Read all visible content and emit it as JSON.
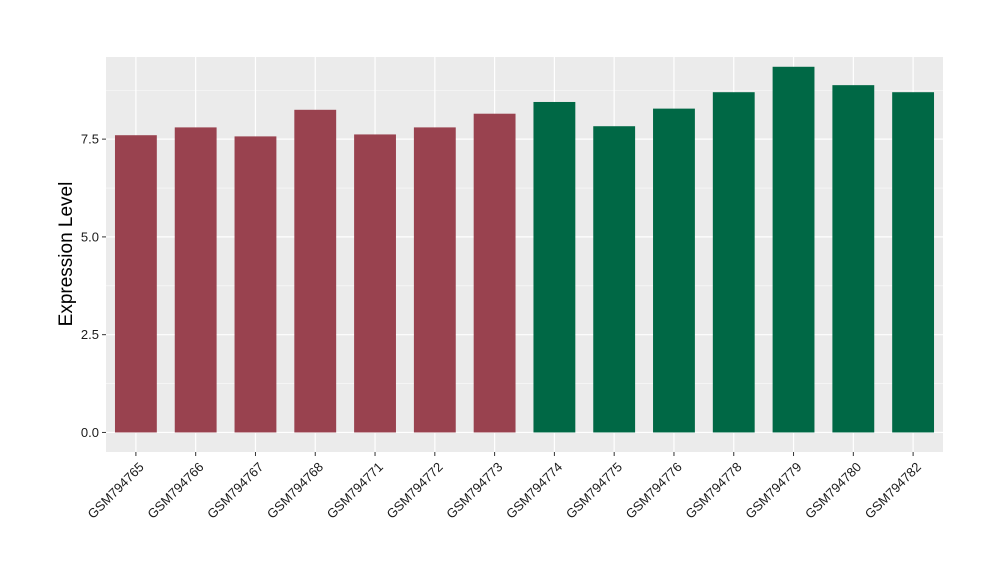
{
  "chart_data": {
    "type": "bar",
    "title": "",
    "xlabel": "",
    "ylabel": "Expression Level",
    "ylim": [
      -0.5,
      9.6
    ],
    "yticks": [
      0.0,
      2.5,
      5.0,
      7.5
    ],
    "ytick_labels": [
      "0.0",
      "2.5",
      "5.0",
      "7.5"
    ],
    "grid": true,
    "legend": "none",
    "categories": [
      "GSM794765",
      "GSM794766",
      "GSM794767",
      "GSM794768",
      "GSM794771",
      "GSM794772",
      "GSM794773",
      "GSM794774",
      "GSM794775",
      "GSM794776",
      "GSM794778",
      "GSM794779",
      "GSM794780",
      "GSM794782"
    ],
    "values": [
      7.6,
      7.8,
      7.57,
      8.25,
      7.62,
      7.8,
      8.15,
      8.45,
      7.83,
      8.28,
      8.7,
      9.35,
      8.88,
      8.7
    ],
    "group": [
      0,
      0,
      0,
      0,
      0,
      0,
      0,
      1,
      1,
      1,
      1,
      1,
      1,
      1
    ],
    "colors": {
      "group_0": "#99424f",
      "group_1": "#006845",
      "panel_background": "#ebebeb",
      "gridline": "#ffffff"
    }
  }
}
